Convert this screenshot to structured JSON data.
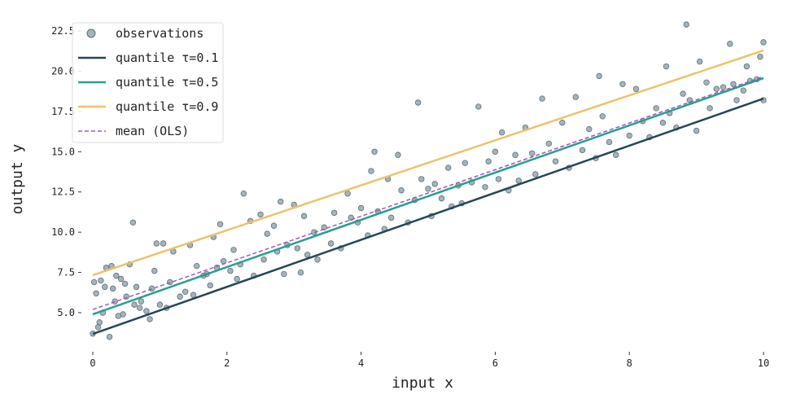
{
  "chart_data": {
    "type": "scatter",
    "title": "",
    "xlabel": "input x",
    "ylabel": "output y",
    "xlim": [
      -0.17,
      10.17
    ],
    "ylim": [
      2.57,
      23.16
    ],
    "xticks": [
      "0",
      "2",
      "4",
      "6",
      "8",
      "10"
    ],
    "xtick_values": [
      0,
      2,
      4,
      6,
      8,
      10
    ],
    "yticks": [
      "5.0",
      "7.5",
      "10.0",
      "12.5",
      "15.0",
      "17.5",
      "20.0",
      "22.5"
    ],
    "ytick_values": [
      5,
      7.5,
      10,
      12.5,
      15,
      17.5,
      20,
      22.5
    ],
    "grid": false,
    "legend_placement": "top-left",
    "colors": {
      "points": "#7f949e",
      "q01": "#264653",
      "q05": "#2a9d8f",
      "q09": "#e9c46a",
      "ols": "#9b59b6"
    },
    "scatter": {
      "name": "observations",
      "points": [
        [
          0,
          3.7
        ],
        [
          0.02,
          6.9
        ],
        [
          0.05,
          6.2
        ],
        [
          0.08,
          4.1
        ],
        [
          0.1,
          4.4
        ],
        [
          0.12,
          7.0
        ],
        [
          0.15,
          5.0
        ],
        [
          0.18,
          6.6
        ],
        [
          0.2,
          7.8
        ],
        [
          0.25,
          3.5
        ],
        [
          0.28,
          7.9
        ],
        [
          0.3,
          6.5
        ],
        [
          0.33,
          5.7
        ],
        [
          0.35,
          7.3
        ],
        [
          0.38,
          4.8
        ],
        [
          0.42,
          7.1
        ],
        [
          0.45,
          4.9
        ],
        [
          0.48,
          6.8
        ],
        [
          0.5,
          6.0
        ],
        [
          0.55,
          8.0
        ],
        [
          0.6,
          10.6
        ],
        [
          0.62,
          5.5
        ],
        [
          0.65,
          6.6
        ],
        [
          0.7,
          5.3
        ],
        [
          0.72,
          5.7
        ],
        [
          0.8,
          5.1
        ],
        [
          0.85,
          4.6
        ],
        [
          0.88,
          6.5
        ],
        [
          0.92,
          7.6
        ],
        [
          0.95,
          9.3
        ],
        [
          1.0,
          5.5
        ],
        [
          1.05,
          9.3
        ],
        [
          1.1,
          5.3
        ],
        [
          1.15,
          6.9
        ],
        [
          1.2,
          8.8
        ],
        [
          1.3,
          6.0
        ],
        [
          1.38,
          6.3
        ],
        [
          1.45,
          9.2
        ],
        [
          1.5,
          6.1
        ],
        [
          1.55,
          7.9
        ],
        [
          1.65,
          7.3
        ],
        [
          1.7,
          7.4
        ],
        [
          1.75,
          6.7
        ],
        [
          1.8,
          9.7
        ],
        [
          1.85,
          7.8
        ],
        [
          1.9,
          10.5
        ],
        [
          1.95,
          8.2
        ],
        [
          2.05,
          7.6
        ],
        [
          2.1,
          8.9
        ],
        [
          2.15,
          7.1
        ],
        [
          2.2,
          8.0
        ],
        [
          2.25,
          12.4
        ],
        [
          2.35,
          10.7
        ],
        [
          2.4,
          7.3
        ],
        [
          2.5,
          11.1
        ],
        [
          2.55,
          8.3
        ],
        [
          2.6,
          9.9
        ],
        [
          2.7,
          10.4
        ],
        [
          2.75,
          8.8
        ],
        [
          2.8,
          11.9
        ],
        [
          2.85,
          7.4
        ],
        [
          2.9,
          9.2
        ],
        [
          3.0,
          11.7
        ],
        [
          3.05,
          9.0
        ],
        [
          3.1,
          7.5
        ],
        [
          3.15,
          11.0
        ],
        [
          3.2,
          8.6
        ],
        [
          3.3,
          10.0
        ],
        [
          3.35,
          8.3
        ],
        [
          3.45,
          10.3
        ],
        [
          3.55,
          9.3
        ],
        [
          3.6,
          11.2
        ],
        [
          3.7,
          9.0
        ],
        [
          3.8,
          12.4
        ],
        [
          3.85,
          10.9
        ],
        [
          3.95,
          10.6
        ],
        [
          4.0,
          11.5
        ],
        [
          4.1,
          9.8
        ],
        [
          4.15,
          13.8
        ],
        [
          4.2,
          15.0
        ],
        [
          4.25,
          11.3
        ],
        [
          4.35,
          10.2
        ],
        [
          4.4,
          13.3
        ],
        [
          4.45,
          10.9
        ],
        [
          4.55,
          14.8
        ],
        [
          4.6,
          12.6
        ],
        [
          4.7,
          10.6
        ],
        [
          4.8,
          12.0
        ],
        [
          4.85,
          18.05
        ],
        [
          4.9,
          13.3
        ],
        [
          5.0,
          12.7
        ],
        [
          5.05,
          11.0
        ],
        [
          5.1,
          13.0
        ],
        [
          5.2,
          12.1
        ],
        [
          5.3,
          14.0
        ],
        [
          5.35,
          11.6
        ],
        [
          5.45,
          12.9
        ],
        [
          5.5,
          11.8
        ],
        [
          5.55,
          14.3
        ],
        [
          5.65,
          13.1
        ],
        [
          5.75,
          17.8
        ],
        [
          5.85,
          12.8
        ],
        [
          5.9,
          14.4
        ],
        [
          6.0,
          15.0
        ],
        [
          6.05,
          13.3
        ],
        [
          6.1,
          16.2
        ],
        [
          6.2,
          12.6
        ],
        [
          6.3,
          14.8
        ],
        [
          6.35,
          13.2
        ],
        [
          6.45,
          16.5
        ],
        [
          6.55,
          14.9
        ],
        [
          6.6,
          13.6
        ],
        [
          6.7,
          18.3
        ],
        [
          6.8,
          15.5
        ],
        [
          6.9,
          14.4
        ],
        [
          7.0,
          16.8
        ],
        [
          7.1,
          14.0
        ],
        [
          7.2,
          18.4
        ],
        [
          7.3,
          15.1
        ],
        [
          7.4,
          16.4
        ],
        [
          7.5,
          14.6
        ],
        [
          7.55,
          19.7
        ],
        [
          7.6,
          17.2
        ],
        [
          7.7,
          15.6
        ],
        [
          7.8,
          14.8
        ],
        [
          7.9,
          19.2
        ],
        [
          8.0,
          16.0
        ],
        [
          8.1,
          18.9
        ],
        [
          8.2,
          16.9
        ],
        [
          8.3,
          15.9
        ],
        [
          8.4,
          17.7
        ],
        [
          8.5,
          16.8
        ],
        [
          8.55,
          20.3
        ],
        [
          8.6,
          17.4
        ],
        [
          8.7,
          16.5
        ],
        [
          8.8,
          18.6
        ],
        [
          8.85,
          22.9
        ],
        [
          8.9,
          18.2
        ],
        [
          9.0,
          16.3
        ],
        [
          9.05,
          20.6
        ],
        [
          9.15,
          19.3
        ],
        [
          9.2,
          17.7
        ],
        [
          9.3,
          18.9
        ],
        [
          9.4,
          19.0
        ],
        [
          9.5,
          21.7
        ],
        [
          9.55,
          19.2
        ],
        [
          9.6,
          18.2
        ],
        [
          9.7,
          18.8
        ],
        [
          9.75,
          20.3
        ],
        [
          9.8,
          19.4
        ],
        [
          9.9,
          19.5
        ],
        [
          9.95,
          20.9
        ],
        [
          10.0,
          21.8
        ],
        [
          10.0,
          18.2
        ]
      ]
    },
    "lines": [
      {
        "name": "quantile τ=0.1",
        "key": "q01",
        "x": [
          0,
          10
        ],
        "y": [
          3.68,
          18.3
        ],
        "style": "solid"
      },
      {
        "name": "quantile τ=0.5",
        "key": "q05",
        "x": [
          0,
          10
        ],
        "y": [
          4.9,
          19.57
        ],
        "style": "solid"
      },
      {
        "name": "quantile τ=0.9",
        "key": "q09",
        "x": [
          0,
          10
        ],
        "y": [
          7.33,
          21.29
        ],
        "style": "solid"
      },
      {
        "name": "mean (OLS)",
        "key": "ols",
        "x": [
          0,
          10
        ],
        "y": [
          5.2,
          19.67
        ],
        "style": "dashed"
      }
    ],
    "legend": [
      "observations",
      "quantile τ=0.1",
      "quantile τ=0.5",
      "quantile τ=0.9",
      "mean (OLS)"
    ]
  }
}
